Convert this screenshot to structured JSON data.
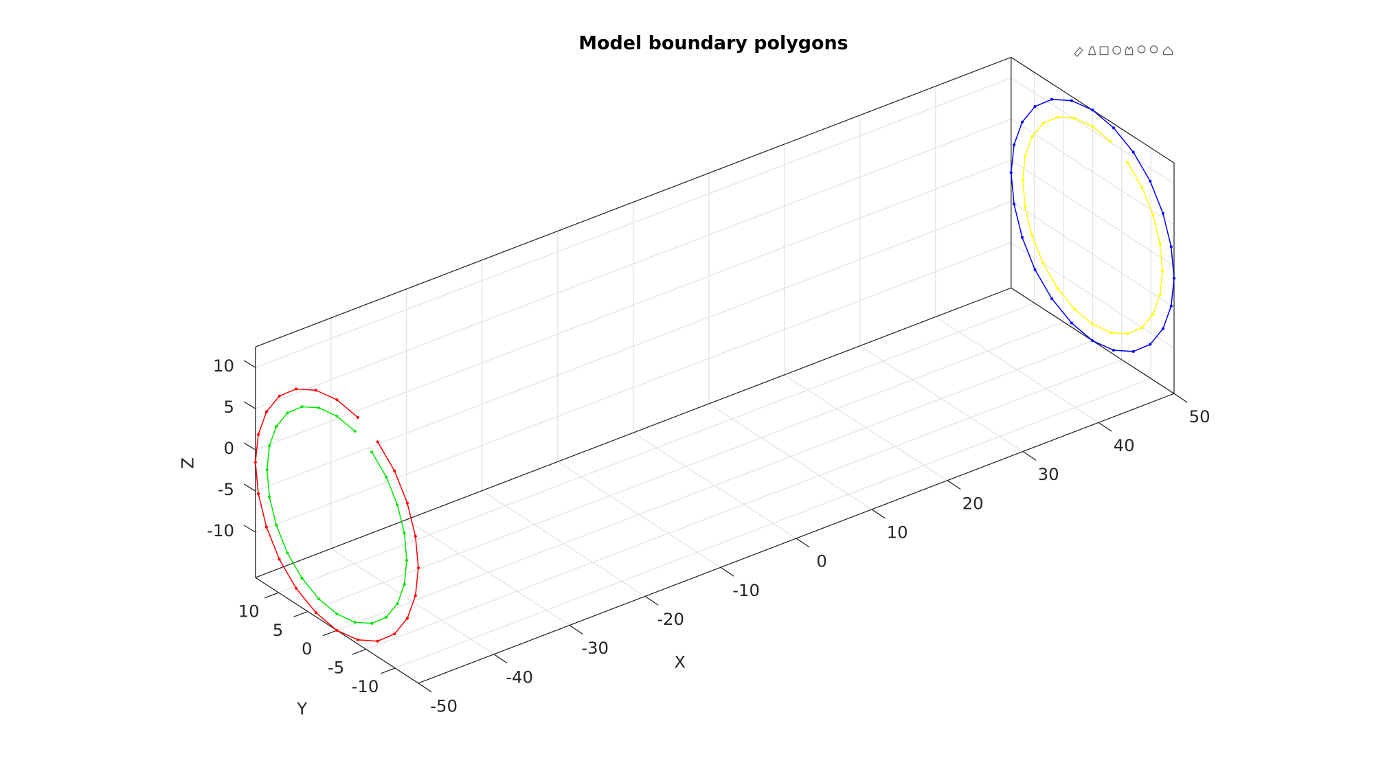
{
  "chart_data": {
    "type": "line3d",
    "title": "Model boundary polygons",
    "x_label": "X",
    "y_label": "Y",
    "z_label": "Z",
    "xlim": [
      -50,
      50
    ],
    "ylim": [
      -14,
      14
    ],
    "zlim": [
      -15.5,
      12.5
    ],
    "xticks": [
      -50,
      -40,
      -30,
      -20,
      -10,
      0,
      10,
      20,
      30,
      40,
      50
    ],
    "yticks": [
      -10,
      -5,
      0,
      5,
      10
    ],
    "zticks": [
      -10,
      -5,
      0,
      5,
      10
    ],
    "grid": true,
    "series": [
      {
        "color": "#ff0000",
        "x": [
          -50,
          -50,
          -50,
          -50,
          -50,
          -50,
          -50,
          -50,
          -50,
          -50,
          -50,
          -50,
          -50,
          -50,
          -50,
          -50,
          -50,
          -50,
          -50,
          -50,
          -50,
          -50,
          -50,
          -50
        ],
        "y": [
          -7,
          -9.9,
          -12.1,
          -13.5,
          -14,
          -13.5,
          -12.1,
          -9.9,
          -7,
          -3.6,
          0,
          3.6,
          7,
          9.9,
          12.1,
          13.5,
          14,
          13.5,
          12.1,
          9.9,
          7,
          3.6,
          0,
          -3.6
        ],
        "z": [
          10.6,
          8.4,
          5.5,
          2.1,
          -1.5,
          -5.1,
          -8.5,
          -11.4,
          -13.6,
          -15.0,
          -15.5,
          -15.0,
          -13.6,
          -11.4,
          -8.5,
          -5.1,
          -1.5,
          2.1,
          5.5,
          8.4,
          10.6,
          12.0,
          12.5,
          12.0
        ]
      },
      {
        "color": "#00e600",
        "x": [
          -50,
          -50,
          -50,
          -50,
          -50,
          -50,
          -50,
          -50,
          -50,
          -50,
          -50,
          -50,
          -50,
          -50,
          -50,
          -50,
          -50,
          -50,
          -50,
          -50,
          -50,
          -50,
          -50,
          -50
        ],
        "y": [
          -6,
          -8.5,
          -10.4,
          -11.6,
          -12,
          -11.6,
          -10.4,
          -8.5,
          -6,
          -3.1,
          0,
          3.1,
          6,
          8.5,
          10.4,
          11.6,
          12,
          11.6,
          10.4,
          8.5,
          6,
          3.1,
          0,
          -3.1
        ],
        "z": [
          8.9,
          7.0,
          4.5,
          1.6,
          -1.5,
          -4.6,
          -7.5,
          -10.0,
          -11.9,
          -13.1,
          -13.5,
          -13.1,
          -11.9,
          -10.0,
          -7.5,
          -4.6,
          -1.5,
          1.6,
          4.5,
          7.0,
          8.9,
          10.1,
          10.5,
          10.1
        ]
      },
      {
        "color": "#0000ff",
        "x": [
          50,
          50,
          50,
          50,
          50,
          50,
          50,
          50,
          50,
          50,
          50,
          50,
          50,
          50,
          50,
          50,
          50,
          50,
          50,
          50,
          50,
          50,
          50,
          50,
          50
        ],
        "y": [
          -7,
          -9.9,
          -12.1,
          -13.5,
          -14,
          -13.5,
          -12.1,
          -9.9,
          -7,
          -3.6,
          0,
          3.6,
          7,
          9.9,
          12.1,
          13.5,
          14,
          13.5,
          12.1,
          9.9,
          7,
          3.6,
          0,
          -3.6,
          -7
        ],
        "z": [
          10.6,
          8.4,
          5.5,
          2.1,
          -1.5,
          -5.1,
          -8.5,
          -11.4,
          -13.6,
          -15.0,
          -15.5,
          -15.0,
          -13.6,
          -11.4,
          -8.5,
          -5.1,
          -1.5,
          2.1,
          5.5,
          8.4,
          10.6,
          12.0,
          12.5,
          12.0,
          10.6
        ]
      },
      {
        "color": "#ffff00",
        "x": [
          50,
          50,
          50,
          50,
          50,
          50,
          50,
          50,
          50,
          50,
          50,
          50,
          50,
          50,
          50,
          50,
          50,
          50,
          50,
          50,
          50,
          50,
          50,
          50
        ],
        "y": [
          -6,
          -8.5,
          -10.4,
          -11.6,
          -12,
          -11.6,
          -10.4,
          -8.5,
          -6,
          -3.1,
          0,
          3.1,
          6,
          8.5,
          10.4,
          11.6,
          12,
          11.6,
          10.4,
          8.5,
          6,
          3.1,
          0,
          -3.1
        ],
        "z": [
          8.9,
          7.0,
          4.5,
          1.6,
          -1.5,
          -4.6,
          -7.5,
          -10.0,
          -11.9,
          -13.1,
          -13.5,
          -13.1,
          -11.9,
          -10.0,
          -7.5,
          -4.6,
          -1.5,
          1.6,
          4.5,
          7.0,
          8.9,
          10.1,
          10.5,
          10.1
        ]
      }
    ]
  }
}
